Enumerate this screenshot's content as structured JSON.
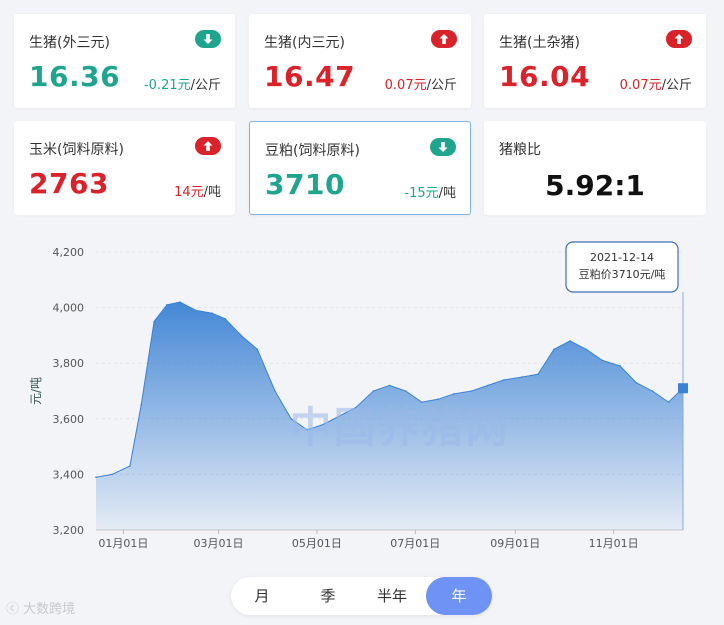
{
  "cards": [
    {
      "name": "生猪(外三元)",
      "value": "16.36",
      "change": "-0.21元",
      "unit": "/公斤",
      "trend": "down",
      "icon": "arrow-down-icon"
    },
    {
      "name": "生猪(内三元)",
      "value": "16.47",
      "change": "0.07元",
      "unit": "/公斤",
      "trend": "up",
      "icon": "arrow-up-icon"
    },
    {
      "name": "生猪(土杂猪)",
      "value": "16.04",
      "change": "0.07元",
      "unit": "/公斤",
      "trend": "up",
      "icon": "arrow-up-icon"
    },
    {
      "name": "玉米(饲料原料)",
      "value": "2763",
      "change": "14元",
      "unit": "/吨",
      "trend": "up",
      "icon": "arrow-up-icon"
    },
    {
      "name": "豆粕(饲料原料)",
      "value": "3710",
      "change": "-15元",
      "unit": "/吨",
      "trend": "down",
      "icon": "arrow-down-icon",
      "selected": true
    }
  ],
  "ratio": {
    "name": "猪粮比",
    "value": "5.92:1"
  },
  "colors": {
    "up": "#d9222a",
    "down": "#1fa58e",
    "accent": "#6e93f5",
    "line": "#3b82d4"
  },
  "tooltip": {
    "date": "2021-12-14",
    "text": "豆粕价3710元/吨"
  },
  "watermark": "中国养猪网",
  "brand": "大数跨境",
  "tabs": [
    {
      "label": "月",
      "active": false
    },
    {
      "label": "季",
      "active": false
    },
    {
      "label": "半年",
      "active": false
    },
    {
      "label": "年",
      "active": true
    }
  ],
  "chart_data": {
    "type": "area",
    "ylabel": "元/吨",
    "ylim": [
      3200,
      4200
    ],
    "yticks": [
      3200,
      3400,
      3600,
      3800,
      4000,
      4200
    ],
    "ytick_labels": [
      "3,200",
      "3,400",
      "3,600",
      "3,800",
      "4,000",
      "4,200"
    ],
    "xticks": [
      "01月01日",
      "03月01日",
      "05月01日",
      "07月01日",
      "09月01日",
      "11月01日"
    ],
    "grid": true,
    "x": [
      "2020-12-15",
      "2020-12-25",
      "2021-01-05",
      "2021-01-12",
      "2021-01-20",
      "2021-01-28",
      "2021-02-05",
      "2021-02-15",
      "2021-02-25",
      "2021-03-05",
      "2021-03-15",
      "2021-03-25",
      "2021-04-05",
      "2021-04-15",
      "2021-04-25",
      "2021-05-05",
      "2021-05-15",
      "2021-05-25",
      "2021-06-05",
      "2021-06-15",
      "2021-06-25",
      "2021-07-05",
      "2021-07-15",
      "2021-07-25",
      "2021-08-05",
      "2021-08-15",
      "2021-08-25",
      "2021-09-05",
      "2021-09-15",
      "2021-09-25",
      "2021-10-05",
      "2021-10-15",
      "2021-10-25",
      "2021-11-05",
      "2021-11-15",
      "2021-11-25",
      "2021-12-05",
      "2021-12-14"
    ],
    "values": [
      3390,
      3400,
      3430,
      3650,
      3950,
      4010,
      4020,
      3990,
      3980,
      3960,
      3900,
      3850,
      3700,
      3600,
      3560,
      3580,
      3610,
      3640,
      3700,
      3720,
      3700,
      3660,
      3670,
      3690,
      3700,
      3720,
      3740,
      3750,
      3760,
      3850,
      3880,
      3850,
      3810,
      3790,
      3730,
      3700,
      3660,
      3710
    ]
  }
}
